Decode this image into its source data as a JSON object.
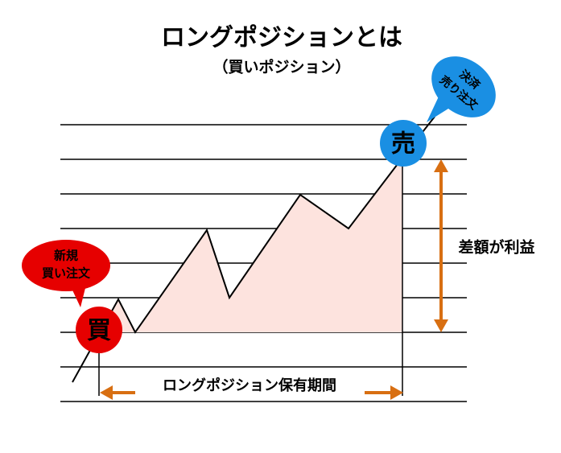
{
  "title": "ロングポジションとは",
  "subtitle": "（買いポジション）",
  "sell_bubble": {
    "lines": [
      "決済",
      "売り注文"
    ]
  },
  "buy_bubble": {
    "lines": [
      "新規",
      "買い注文"
    ]
  },
  "sell_marker": "売",
  "buy_marker": "買",
  "profit_label": "差額が利益",
  "period_label": "ロングポジション保有期間"
}
